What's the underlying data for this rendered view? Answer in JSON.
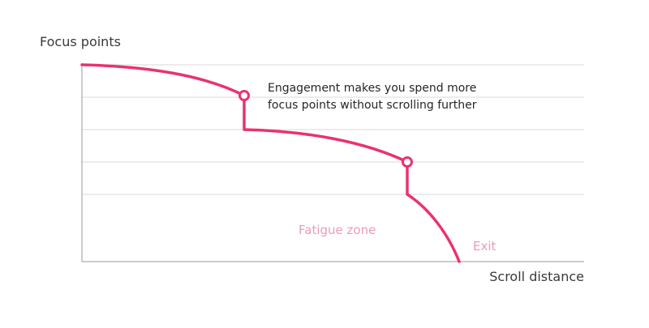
{
  "diagram": {
    "y_axis_title": "Focus points",
    "x_axis_title": "Scroll distance",
    "annotation_lines": [
      "Engagement makes you spend more",
      "focus points without scrolling further"
    ],
    "zone_label": "Fatigue zone",
    "exit_label": "Exit",
    "colors": {
      "curve": "#e8336e",
      "zone_text": "#ea9bb7",
      "grid": "#d9d9d9",
      "axis": "#9a9a9a",
      "text": "#262626"
    }
  }
}
